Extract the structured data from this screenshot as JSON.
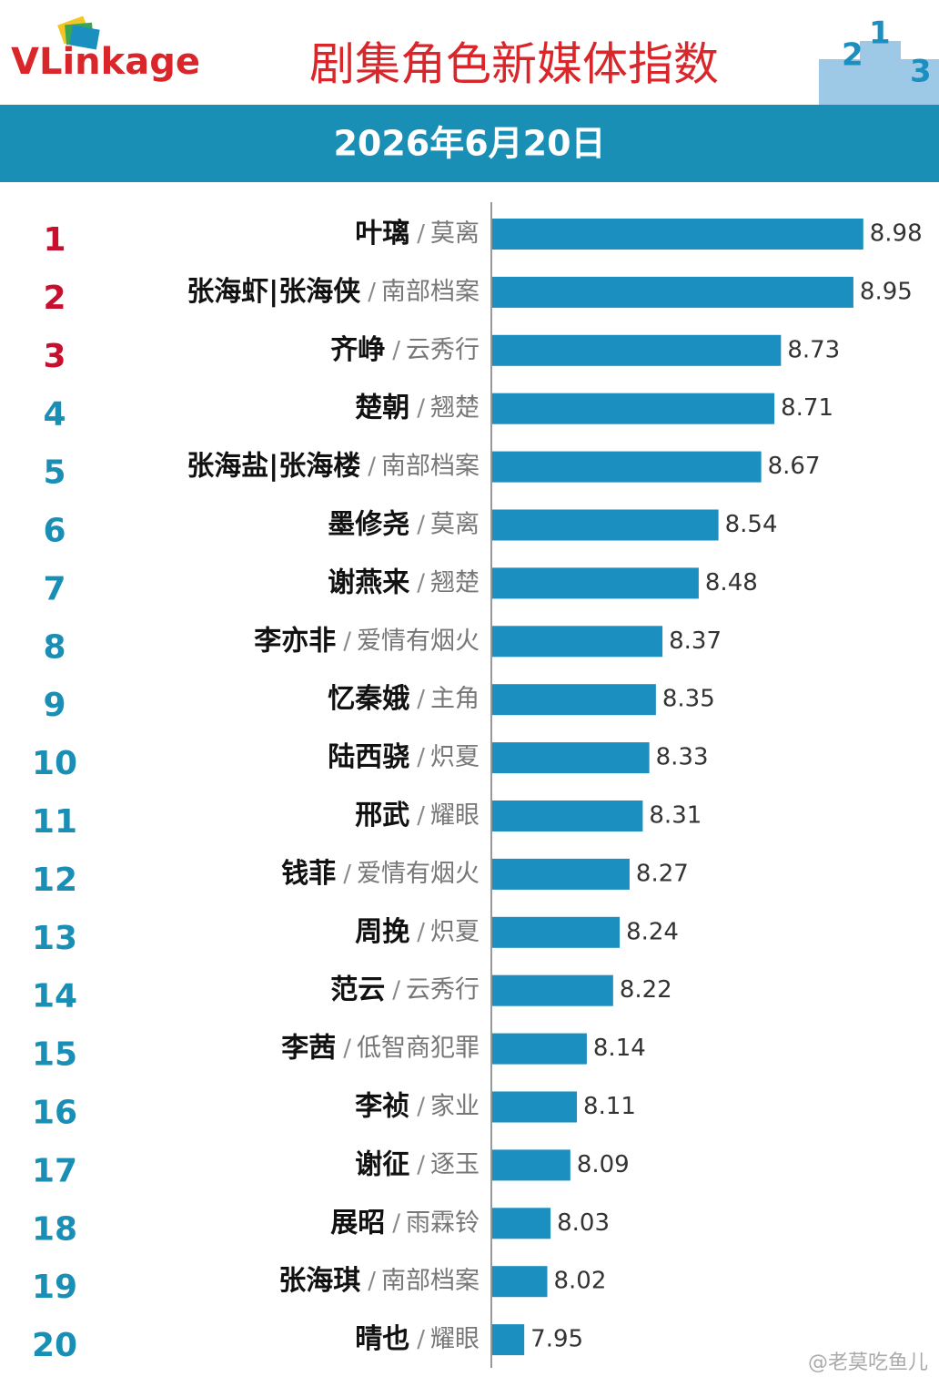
{
  "chart_data": {
    "type": "bar",
    "orientation": "horizontal",
    "logo": "VLinkage",
    "title": "剧集角色新媒体指数",
    "subtitle": "2026年6月20日",
    "ranks": [
      1,
      2,
      3,
      4,
      5,
      6,
      7,
      8,
      9,
      10,
      11,
      12,
      13,
      14,
      15,
      16,
      17,
      18,
      19,
      20
    ],
    "categories": [
      "叶璃",
      "张海虾|张海侠",
      "齐峥",
      "楚朝",
      "张海盐|张海楼",
      "墨修尧",
      "谢燕来",
      "李亦非",
      "忆秦娥",
      "陆西骁",
      "邢武",
      "钱菲",
      "周挽",
      "范云",
      "李茜",
      "李祯",
      "谢征",
      "展昭",
      "张海琪",
      "晴也"
    ],
    "separator": "/",
    "dramas": [
      "莫离",
      "南部档案",
      "云秀行",
      "翘楚",
      "南部档案",
      "莫离",
      "翘楚",
      "爱情有烟火",
      "主角",
      "炽夏",
      "耀眼",
      "爱情有烟火",
      "炽夏",
      "云秀行",
      "低智商犯罪",
      "家业",
      "逐玉",
      "雨霖铃",
      "南部档案",
      "耀眼"
    ],
    "values": [
      8.98,
      8.95,
      8.73,
      8.71,
      8.67,
      8.54,
      8.48,
      8.37,
      8.35,
      8.33,
      8.31,
      8.27,
      8.24,
      8.22,
      8.14,
      8.11,
      8.09,
      8.03,
      8.02,
      7.95
    ],
    "xlim": [
      7.85,
      9.0
    ],
    "color": "#1a8fc0",
    "top_color": "#c8102e",
    "rank_color": "#1a8fb5",
    "watermark": "@老莫吃鱼儿"
  }
}
